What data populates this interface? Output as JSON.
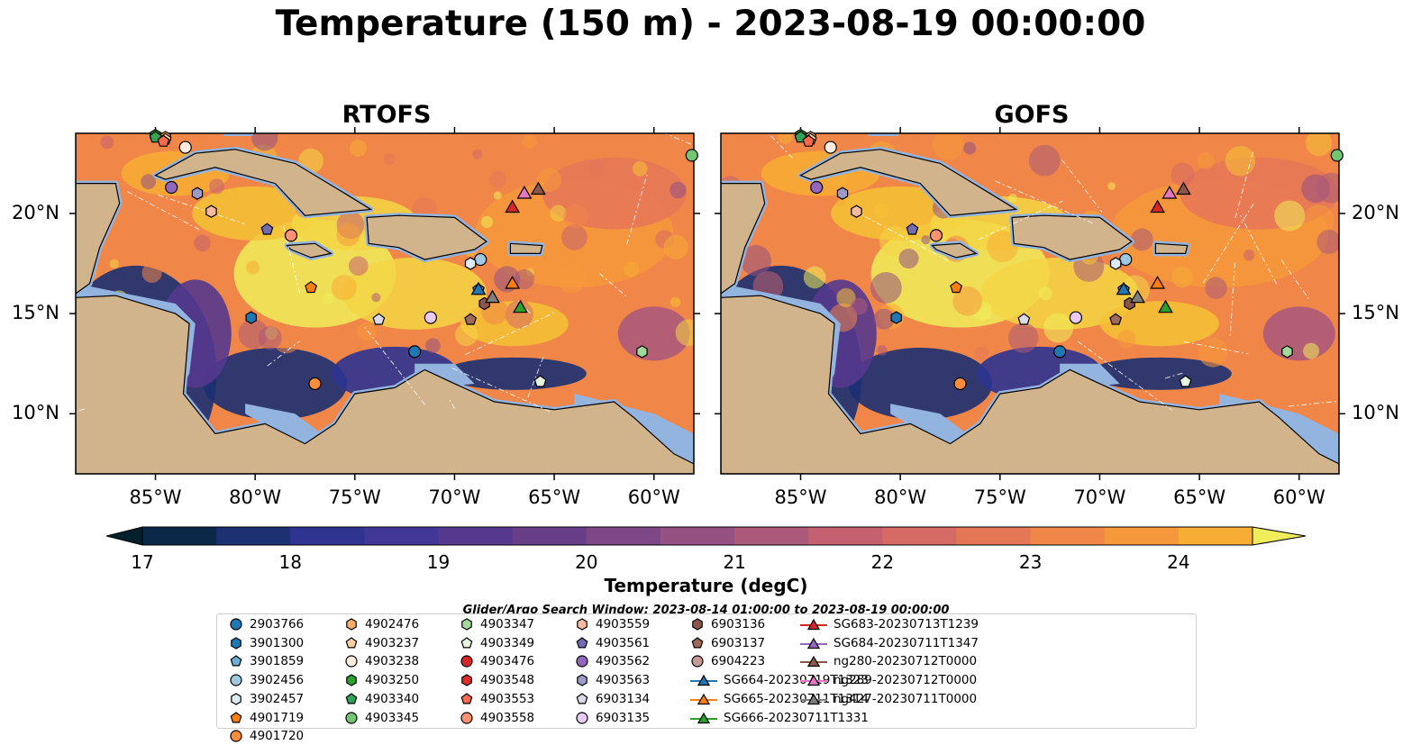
{
  "suptitle": "Temperature (150 m) - 2023-08-19 00:00:00",
  "colors": {
    "land": "#d2b48c",
    "shelf": "#94b4e0",
    "cmap": [
      "#04202c",
      "#0c2848",
      "#1c3072",
      "#2e3490",
      "#423696",
      "#55398e",
      "#693e88",
      "#7e4786",
      "#945181",
      "#ac5a79",
      "#c4606f",
      "#d66a64",
      "#e57757",
      "#f08748",
      "#f6993c",
      "#f8ad34",
      "#f6c236",
      "#f4d645",
      "#f0ed5a"
    ]
  },
  "colorbar": {
    "label": "Temperature (degC)",
    "ticks": [
      "17",
      "18",
      "19",
      "20",
      "21",
      "22",
      "23",
      "24"
    ],
    "min": 17,
    "max": 24.5,
    "step": 0.5,
    "extend": "both"
  },
  "search_window": "Glider/Argo Search Window: 2023-08-14 01:00:00 to 2023-08-19 00:00:00",
  "chart_data": [
    {
      "type": "heatmap",
      "title": "RTOFS",
      "variable": "Temperature (150 m)",
      "units": "degC",
      "xlim": [
        -89,
        -58
      ],
      "ylim": [
        7,
        24
      ],
      "xticks": [
        "85°W",
        "80°W",
        "75°W",
        "70°W",
        "65°W",
        "60°W"
      ],
      "yticks": [
        "10°N",
        "15°N",
        "20°N"
      ],
      "ytick_side": "left"
    },
    {
      "type": "heatmap",
      "title": "GOFS",
      "variable": "Temperature (150 m)",
      "units": "degC",
      "xlim": [
        -89,
        -58
      ],
      "ylim": [
        7,
        24
      ],
      "xticks": [
        "85°W",
        "80°W",
        "75°W",
        "70°W",
        "65°W",
        "60°W"
      ],
      "yticks": [
        "10°N",
        "15°N",
        "20°N"
      ],
      "ytick_side": "right"
    }
  ],
  "platforms": [
    {
      "id": "2903766",
      "marker": "circle",
      "color": "#1f77b4",
      "lon": -72.0,
      "lat": 13.1
    },
    {
      "id": "3901300",
      "marker": "hexagon",
      "color": "#1f77b4",
      "lon": -80.2,
      "lat": 14.8
    },
    {
      "id": "3901859",
      "marker": "pentagon",
      "color": "#6baed6",
      "lon": -68.8,
      "lat": 16.2
    },
    {
      "id": "3902456",
      "marker": "circle",
      "color": "#9ecae1",
      "lon": -68.7,
      "lat": 17.7
    },
    {
      "id": "3902457",
      "marker": "hexagon",
      "color": "#deebf7",
      "lon": -69.2,
      "lat": 17.5
    },
    {
      "id": "4901719",
      "marker": "pentagon",
      "color": "#ff7f0e",
      "lon": -77.2,
      "lat": 16.3
    },
    {
      "id": "4901720",
      "marker": "circle",
      "color": "#fd8d3c",
      "lon": -77.0,
      "lat": 11.5
    },
    {
      "id": "4902476",
      "marker": "hexagon",
      "color": "#fdae6b",
      "lon": -84.5,
      "lat": 23.8
    },
    {
      "id": "4903237",
      "marker": "pentagon",
      "color": "#fdd0a2",
      "lon": -84.5,
      "lat": 23.7
    },
    {
      "id": "4903238",
      "marker": "circle",
      "color": "#feedde",
      "lon": -83.5,
      "lat": 23.3
    },
    {
      "id": "4903250",
      "marker": "hexagon",
      "color": "#2ca02c",
      "lon": -85.0,
      "lat": 23.9
    },
    {
      "id": "4903340",
      "marker": "pentagon",
      "color": "#31a354",
      "lon": -85.0,
      "lat": 23.8
    },
    {
      "id": "4903345",
      "marker": "circle",
      "color": "#74c476",
      "lon": -58.1,
      "lat": 22.9
    },
    {
      "id": "4903347",
      "marker": "hexagon",
      "color": "#a1d99b",
      "lon": -60.6,
      "lat": 13.1
    },
    {
      "id": "4903349",
      "marker": "pentagon",
      "color": "#e5f5e0",
      "lon": -65.7,
      "lat": 11.6
    },
    {
      "id": "4903476",
      "marker": "circle",
      "color": "#d62728",
      "lon": null,
      "lat": null
    },
    {
      "id": "4903548",
      "marker": "hexagon",
      "color": "#de2d26",
      "lon": null,
      "lat": null
    },
    {
      "id": "4903553",
      "marker": "pentagon",
      "color": "#fb6a4a",
      "lon": -84.6,
      "lat": 23.6
    },
    {
      "id": "4903558",
      "marker": "circle",
      "color": "#fc9272",
      "lon": -78.2,
      "lat": 18.9
    },
    {
      "id": "4903559",
      "marker": "hexagon",
      "color": "#fcbba1",
      "lon": -82.2,
      "lat": 20.1
    },
    {
      "id": "4903561",
      "marker": "pentagon",
      "color": "#756bb1",
      "lon": -79.4,
      "lat": 19.2
    },
    {
      "id": "4903562",
      "marker": "circle",
      "color": "#9467bd",
      "lon": -84.2,
      "lat": 21.3
    },
    {
      "id": "4903563",
      "marker": "hexagon",
      "color": "#9e9ac8",
      "lon": -82.9,
      "lat": 21.0
    },
    {
      "id": "6903134",
      "marker": "pentagon",
      "color": "#dadaeb",
      "lon": -73.8,
      "lat": 14.7
    },
    {
      "id": "6903135",
      "marker": "circle",
      "color": "#e9c9f5",
      "lon": -71.2,
      "lat": 14.8
    },
    {
      "id": "6903136",
      "marker": "hexagon",
      "color": "#8c564b",
      "lon": -68.5,
      "lat": 15.5
    },
    {
      "id": "6903137",
      "marker": "pentagon",
      "color": "#a0695a",
      "lon": -69.2,
      "lat": 14.7
    },
    {
      "id": "6904223",
      "marker": "circle",
      "color": "#c49c94",
      "lon": null,
      "lat": null
    }
  ],
  "gliders": [
    {
      "id": "SG664-20230719T1323",
      "color": "#1f77b4",
      "lon": -68.8,
      "lat": 16.2
    },
    {
      "id": "SG665-20230711T1314",
      "color": "#ff7f0e",
      "lon": -67.1,
      "lat": 16.5
    },
    {
      "id": "SG666-20230711T1331",
      "color": "#2ca02c",
      "lon": -66.7,
      "lat": 15.3
    },
    {
      "id": "SG683-20230713T1239",
      "color": "#d62728",
      "lon": -67.1,
      "lat": 20.3
    },
    {
      "id": "SG684-20230711T1347",
      "color": "#9467bd",
      "lon": null,
      "lat": null
    },
    {
      "id": "ng280-20230712T0000",
      "color": "#8c564b",
      "lon": -65.8,
      "lat": 21.2
    },
    {
      "id": "ng289-20230712T0000",
      "color": "#e377c2",
      "lon": -66.5,
      "lat": 21.0
    },
    {
      "id": "ng427-20230711T0000",
      "color": "#7f7f7f",
      "lon": -68.1,
      "lat": 15.8
    }
  ]
}
